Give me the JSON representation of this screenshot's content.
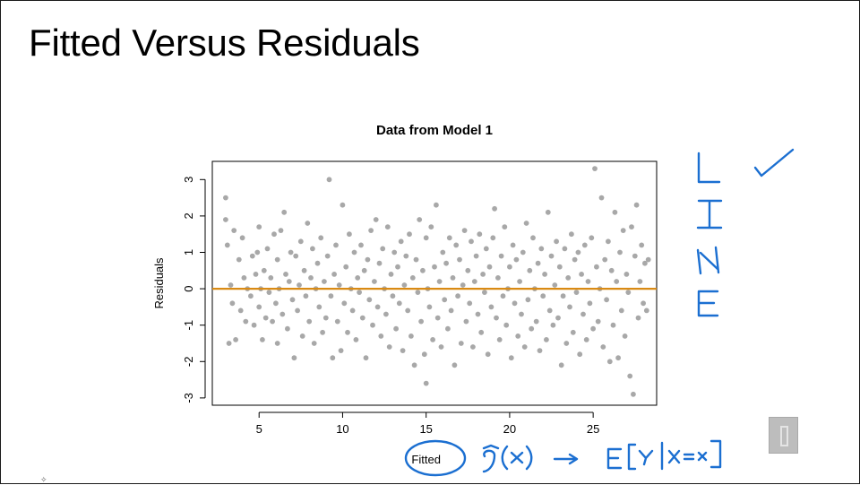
{
  "slide": {
    "title": "Fitted Versus Residuals"
  },
  "colors": {
    "points": "#a8a8a8",
    "zero_line": "#d98a14",
    "ink": "#1b6fd1",
    "axis": "#000000"
  },
  "annotations": {
    "vertical_word": "LINE",
    "formula": "ŷ(x) → E[Y | X = x]",
    "circled_label": "Fitted",
    "checkmark_icon": "checkmark-icon"
  },
  "logo": {
    "icon": "block-i-logo-icon"
  },
  "chart_data": {
    "type": "scatter",
    "title": "Data from Model 1",
    "xlabel": "Fitted",
    "ylabel": "Residuals",
    "xlim": [
      2.2,
      28.8
    ],
    "ylim": [
      -3.2,
      3.5
    ],
    "xticks": [
      5,
      10,
      15,
      20,
      25
    ],
    "yticks": [
      -3,
      -2,
      -1,
      0,
      1,
      2,
      3
    ],
    "reference_line": {
      "y": 0,
      "color": "#d98a14"
    },
    "grid": false,
    "points": [
      [
        3.0,
        2.5
      ],
      [
        3.0,
        1.9
      ],
      [
        3.1,
        1.2
      ],
      [
        3.2,
        -1.5
      ],
      [
        3.3,
        0.1
      ],
      [
        3.4,
        -0.4
      ],
      [
        3.5,
        1.6
      ],
      [
        3.6,
        -1.4
      ],
      [
        3.8,
        0.8
      ],
      [
        3.9,
        -0.6
      ],
      [
        4.0,
        1.4
      ],
      [
        4.1,
        0.3
      ],
      [
        4.2,
        -0.9
      ],
      [
        4.3,
        0.0
      ],
      [
        4.5,
        -0.2
      ],
      [
        4.6,
        0.9
      ],
      [
        4.7,
        -1.0
      ],
      [
        4.8,
        0.4
      ],
      [
        4.9,
        1.0
      ],
      [
        5.0,
        -0.5
      ],
      [
        5.0,
        1.7
      ],
      [
        5.1,
        0.0
      ],
      [
        5.2,
        -1.4
      ],
      [
        5.3,
        0.5
      ],
      [
        5.4,
        -0.8
      ],
      [
        5.5,
        1.1
      ],
      [
        5.6,
        -0.1
      ],
      [
        5.7,
        0.3
      ],
      [
        5.8,
        -0.9
      ],
      [
        5.9,
        1.5
      ],
      [
        6.0,
        -0.4
      ],
      [
        6.1,
        0.8
      ],
      [
        6.1,
        -1.5
      ],
      [
        6.2,
        0.0
      ],
      [
        6.3,
        1.6
      ],
      [
        6.4,
        -0.7
      ],
      [
        6.5,
        2.1
      ],
      [
        6.6,
        0.4
      ],
      [
        6.7,
        -1.1
      ],
      [
        6.8,
        0.2
      ],
      [
        6.9,
        1.0
      ],
      [
        7.0,
        -0.3
      ],
      [
        7.1,
        -1.9
      ],
      [
        7.2,
        0.9
      ],
      [
        7.3,
        -0.6
      ],
      [
        7.4,
        0.1
      ],
      [
        7.5,
        1.3
      ],
      [
        7.6,
        -1.3
      ],
      [
        7.7,
        0.5
      ],
      [
        7.8,
        -0.2
      ],
      [
        7.9,
        1.8
      ],
      [
        8.0,
        -0.9
      ],
      [
        8.1,
        0.3
      ],
      [
        8.2,
        1.1
      ],
      [
        8.3,
        -1.5
      ],
      [
        8.4,
        0.0
      ],
      [
        8.5,
        0.7
      ],
      [
        8.6,
        -0.5
      ],
      [
        8.7,
        1.4
      ],
      [
        8.8,
        -1.2
      ],
      [
        8.9,
        0.2
      ],
      [
        9.0,
        -0.8
      ],
      [
        9.1,
        0.9
      ],
      [
        9.2,
        3.0
      ],
      [
        9.3,
        -0.2
      ],
      [
        9.4,
        -1.9
      ],
      [
        9.5,
        0.4
      ],
      [
        9.6,
        1.2
      ],
      [
        9.7,
        -0.9
      ],
      [
        9.8,
        0.1
      ],
      [
        9.9,
        -1.7
      ],
      [
        10.0,
        2.3
      ],
      [
        10.1,
        -0.4
      ],
      [
        10.2,
        0.6
      ],
      [
        10.3,
        -1.2
      ],
      [
        10.4,
        1.5
      ],
      [
        10.5,
        0.0
      ],
      [
        10.6,
        -0.6
      ],
      [
        10.7,
        1.0
      ],
      [
        10.8,
        -1.4
      ],
      [
        10.9,
        0.3
      ],
      [
        11.0,
        -0.1
      ],
      [
        11.1,
        1.2
      ],
      [
        11.2,
        -0.8
      ],
      [
        11.3,
        0.5
      ],
      [
        11.4,
        -1.9
      ],
      [
        11.5,
        0.8
      ],
      [
        11.6,
        -0.3
      ],
      [
        11.7,
        1.6
      ],
      [
        11.8,
        -1.0
      ],
      [
        11.9,
        0.2
      ],
      [
        12.0,
        1.9
      ],
      [
        12.1,
        -0.5
      ],
      [
        12.2,
        0.7
      ],
      [
        12.3,
        -1.3
      ],
      [
        12.4,
        1.1
      ],
      [
        12.5,
        0.0
      ],
      [
        12.6,
        -0.7
      ],
      [
        12.7,
        1.7
      ],
      [
        12.8,
        -1.6
      ],
      [
        12.9,
        0.4
      ],
      [
        13.0,
        -0.2
      ],
      [
        13.1,
        1.0
      ],
      [
        13.2,
        -1.1
      ],
      [
        13.3,
        0.6
      ],
      [
        13.4,
        -0.4
      ],
      [
        13.5,
        1.3
      ],
      [
        13.6,
        -1.7
      ],
      [
        13.7,
        0.1
      ],
      [
        13.8,
        0.9
      ],
      [
        13.9,
        -0.6
      ],
      [
        14.0,
        1.5
      ],
      [
        14.1,
        -1.3
      ],
      [
        14.2,
        0.3
      ],
      [
        14.3,
        -2.1
      ],
      [
        14.4,
        0.8
      ],
      [
        14.5,
        -0.1
      ],
      [
        14.6,
        1.9
      ],
      [
        14.7,
        -0.9
      ],
      [
        14.8,
        0.5
      ],
      [
        14.9,
        -1.8
      ],
      [
        15.0,
        1.4
      ],
      [
        15.0,
        -2.6
      ],
      [
        15.1,
        0.0
      ],
      [
        15.2,
        -0.5
      ],
      [
        15.3,
        1.7
      ],
      [
        15.4,
        -1.4
      ],
      [
        15.5,
        0.6
      ],
      [
        15.6,
        2.3
      ],
      [
        15.7,
        -0.8
      ],
      [
        15.8,
        0.2
      ],
      [
        15.9,
        -1.6
      ],
      [
        16.0,
        1.0
      ],
      [
        16.1,
        -0.3
      ],
      [
        16.2,
        0.7
      ],
      [
        16.3,
        -1.1
      ],
      [
        16.4,
        1.4
      ],
      [
        16.5,
        -0.6
      ],
      [
        16.6,
        0.3
      ],
      [
        16.7,
        -2.1
      ],
      [
        16.8,
        1.2
      ],
      [
        16.9,
        -0.2
      ],
      [
        17.0,
        0.8
      ],
      [
        17.1,
        -1.5
      ],
      [
        17.2,
        0.1
      ],
      [
        17.3,
        1.6
      ],
      [
        17.4,
        -0.9
      ],
      [
        17.5,
        0.5
      ],
      [
        17.6,
        -0.4
      ],
      [
        17.7,
        1.3
      ],
      [
        17.8,
        -1.6
      ],
      [
        17.9,
        0.2
      ],
      [
        18.0,
        0.9
      ],
      [
        18.1,
        -0.7
      ],
      [
        18.2,
        1.5
      ],
      [
        18.3,
        -1.2
      ],
      [
        18.4,
        0.4
      ],
      [
        18.5,
        -0.1
      ],
      [
        18.6,
        1.1
      ],
      [
        18.7,
        -1.8
      ],
      [
        18.8,
        0.6
      ],
      [
        18.9,
        -0.5
      ],
      [
        19.0,
        1.4
      ],
      [
        19.1,
        2.2
      ],
      [
        19.2,
        -0.8
      ],
      [
        19.3,
        0.3
      ],
      [
        19.4,
        -1.4
      ],
      [
        19.5,
        0.9
      ],
      [
        19.6,
        -0.2
      ],
      [
        19.7,
        1.7
      ],
      [
        19.8,
        -1.0
      ],
      [
        19.9,
        0.0
      ],
      [
        20.0,
        0.6
      ],
      [
        20.1,
        -1.9
      ],
      [
        20.2,
        1.2
      ],
      [
        20.3,
        -0.4
      ],
      [
        20.4,
        0.8
      ],
      [
        20.5,
        -1.3
      ],
      [
        20.6,
        0.2
      ],
      [
        20.7,
        -0.7
      ],
      [
        20.8,
        1.0
      ],
      [
        20.9,
        -1.6
      ],
      [
        21.0,
        1.8
      ],
      [
        21.1,
        -0.3
      ],
      [
        21.2,
        0.5
      ],
      [
        21.3,
        -1.1
      ],
      [
        21.4,
        1.4
      ],
      [
        21.5,
        0.0
      ],
      [
        21.6,
        -0.9
      ],
      [
        21.7,
        0.7
      ],
      [
        21.8,
        -1.7
      ],
      [
        21.9,
        1.1
      ],
      [
        22.0,
        -0.2
      ],
      [
        22.1,
        0.4
      ],
      [
        22.2,
        -1.4
      ],
      [
        22.3,
        2.1
      ],
      [
        22.4,
        -0.6
      ],
      [
        22.5,
        0.9
      ],
      [
        22.6,
        -1.0
      ],
      [
        22.7,
        0.1
      ],
      [
        22.8,
        1.3
      ],
      [
        22.9,
        -0.8
      ],
      [
        23.0,
        0.6
      ],
      [
        23.1,
        -2.1
      ],
      [
        23.2,
        -0.2
      ],
      [
        23.3,
        1.1
      ],
      [
        23.4,
        -1.5
      ],
      [
        23.5,
        0.3
      ],
      [
        23.6,
        -0.5
      ],
      [
        23.7,
        1.5
      ],
      [
        23.8,
        -1.2
      ],
      [
        23.9,
        0.8
      ],
      [
        24.0,
        -0.1
      ],
      [
        24.1,
        1.0
      ],
      [
        24.2,
        -1.8
      ],
      [
        24.3,
        0.4
      ],
      [
        24.4,
        -0.7
      ],
      [
        24.5,
        1.2
      ],
      [
        24.6,
        -1.4
      ],
      [
        24.7,
        0.2
      ],
      [
        24.8,
        -0.4
      ],
      [
        24.9,
        1.4
      ],
      [
        25.0,
        -1.1
      ],
      [
        25.1,
        3.3
      ],
      [
        25.2,
        0.6
      ],
      [
        25.3,
        -0.9
      ],
      [
        25.4,
        0.0
      ],
      [
        25.5,
        2.5
      ],
      [
        25.6,
        -1.6
      ],
      [
        25.7,
        0.8
      ],
      [
        25.8,
        -0.3
      ],
      [
        25.9,
        1.3
      ],
      [
        26.0,
        -2.0
      ],
      [
        26.1,
        0.5
      ],
      [
        26.2,
        -1.0
      ],
      [
        26.3,
        2.1
      ],
      [
        26.4,
        0.2
      ],
      [
        26.5,
        -1.9
      ],
      [
        26.6,
        1.0
      ],
      [
        26.7,
        -0.6
      ],
      [
        26.8,
        1.6
      ],
      [
        26.9,
        -1.3
      ],
      [
        27.0,
        0.4
      ],
      [
        27.1,
        -0.1
      ],
      [
        27.2,
        -2.4
      ],
      [
        27.3,
        1.7
      ],
      [
        27.4,
        -2.9
      ],
      [
        27.5,
        0.9
      ],
      [
        27.6,
        2.3
      ],
      [
        27.7,
        -0.8
      ],
      [
        27.8,
        0.2
      ],
      [
        27.9,
        1.2
      ],
      [
        28.0,
        -0.4
      ],
      [
        28.1,
        0.7
      ],
      [
        28.2,
        -0.6
      ],
      [
        28.3,
        0.8
      ]
    ]
  }
}
